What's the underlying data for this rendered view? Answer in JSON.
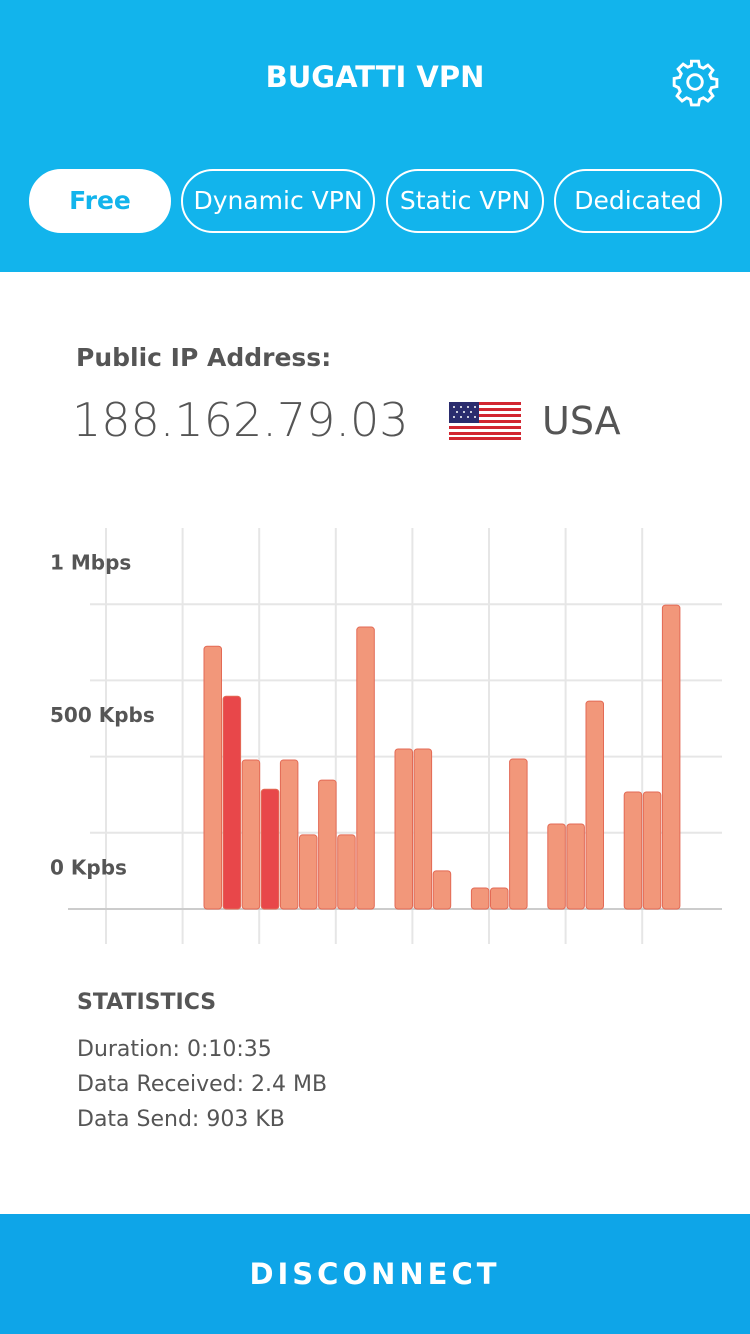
{
  "header": {
    "title": "BUGATTI VPN"
  },
  "tabs": [
    "Free",
    "Dynamic VPN",
    "Static VPN",
    "Dedicated"
  ],
  "ip": {
    "label": "Public IP Address:",
    "address": "188.162.79.03",
    "country": "USA"
  },
  "chart_data": {
    "type": "bar",
    "categories": [
      null,
      null,
      null,
      null,
      null,
      null,
      null,
      null,
      null,
      null,
      null,
      null,
      null,
      null,
      null,
      null,
      null,
      null,
      null,
      null,
      null,
      null,
      null,
      null,
      null
    ],
    "values": [
      862,
      698,
      489,
      393,
      489,
      243,
      423,
      243,
      925,
      null,
      525,
      525,
      125,
      null,
      69,
      69,
      492,
      null,
      279,
      279,
      682,
      null,
      384,
      384,
      997
    ],
    "colors": [
      "#f2977a",
      "#e8474a",
      "#f2977a",
      "#e8474a",
      "#f2977a",
      "#f2977a",
      "#f2977a",
      "#f2977a",
      "#f2977a",
      null,
      "#f2977a",
      "#f2977a",
      "#f2977a",
      null,
      "#f2977a",
      "#f2977a",
      "#f2977a",
      null,
      "#f2977a",
      "#f2977a",
      "#f2977a",
      null,
      "#f2977a",
      "#f2977a",
      "#f2977a"
    ],
    "ylim": [
      0,
      1250
    ],
    "yticks": [
      {
        "value": 0,
        "label": "0 Kpbs"
      },
      {
        "value": 500,
        "label": "500 Kpbs"
      },
      {
        "value": 1000,
        "label": "1 Mbps"
      }
    ],
    "gridlines": [
      0,
      250,
      500,
      750,
      1000
    ],
    "grid": true
  },
  "statistics": {
    "title": "STATISTICS",
    "lines": [
      "Duration: 0:10:35",
      "Data Received: 2.4 MB",
      "Data Send: 903 KB"
    ]
  },
  "button": "DISCONNECT"
}
